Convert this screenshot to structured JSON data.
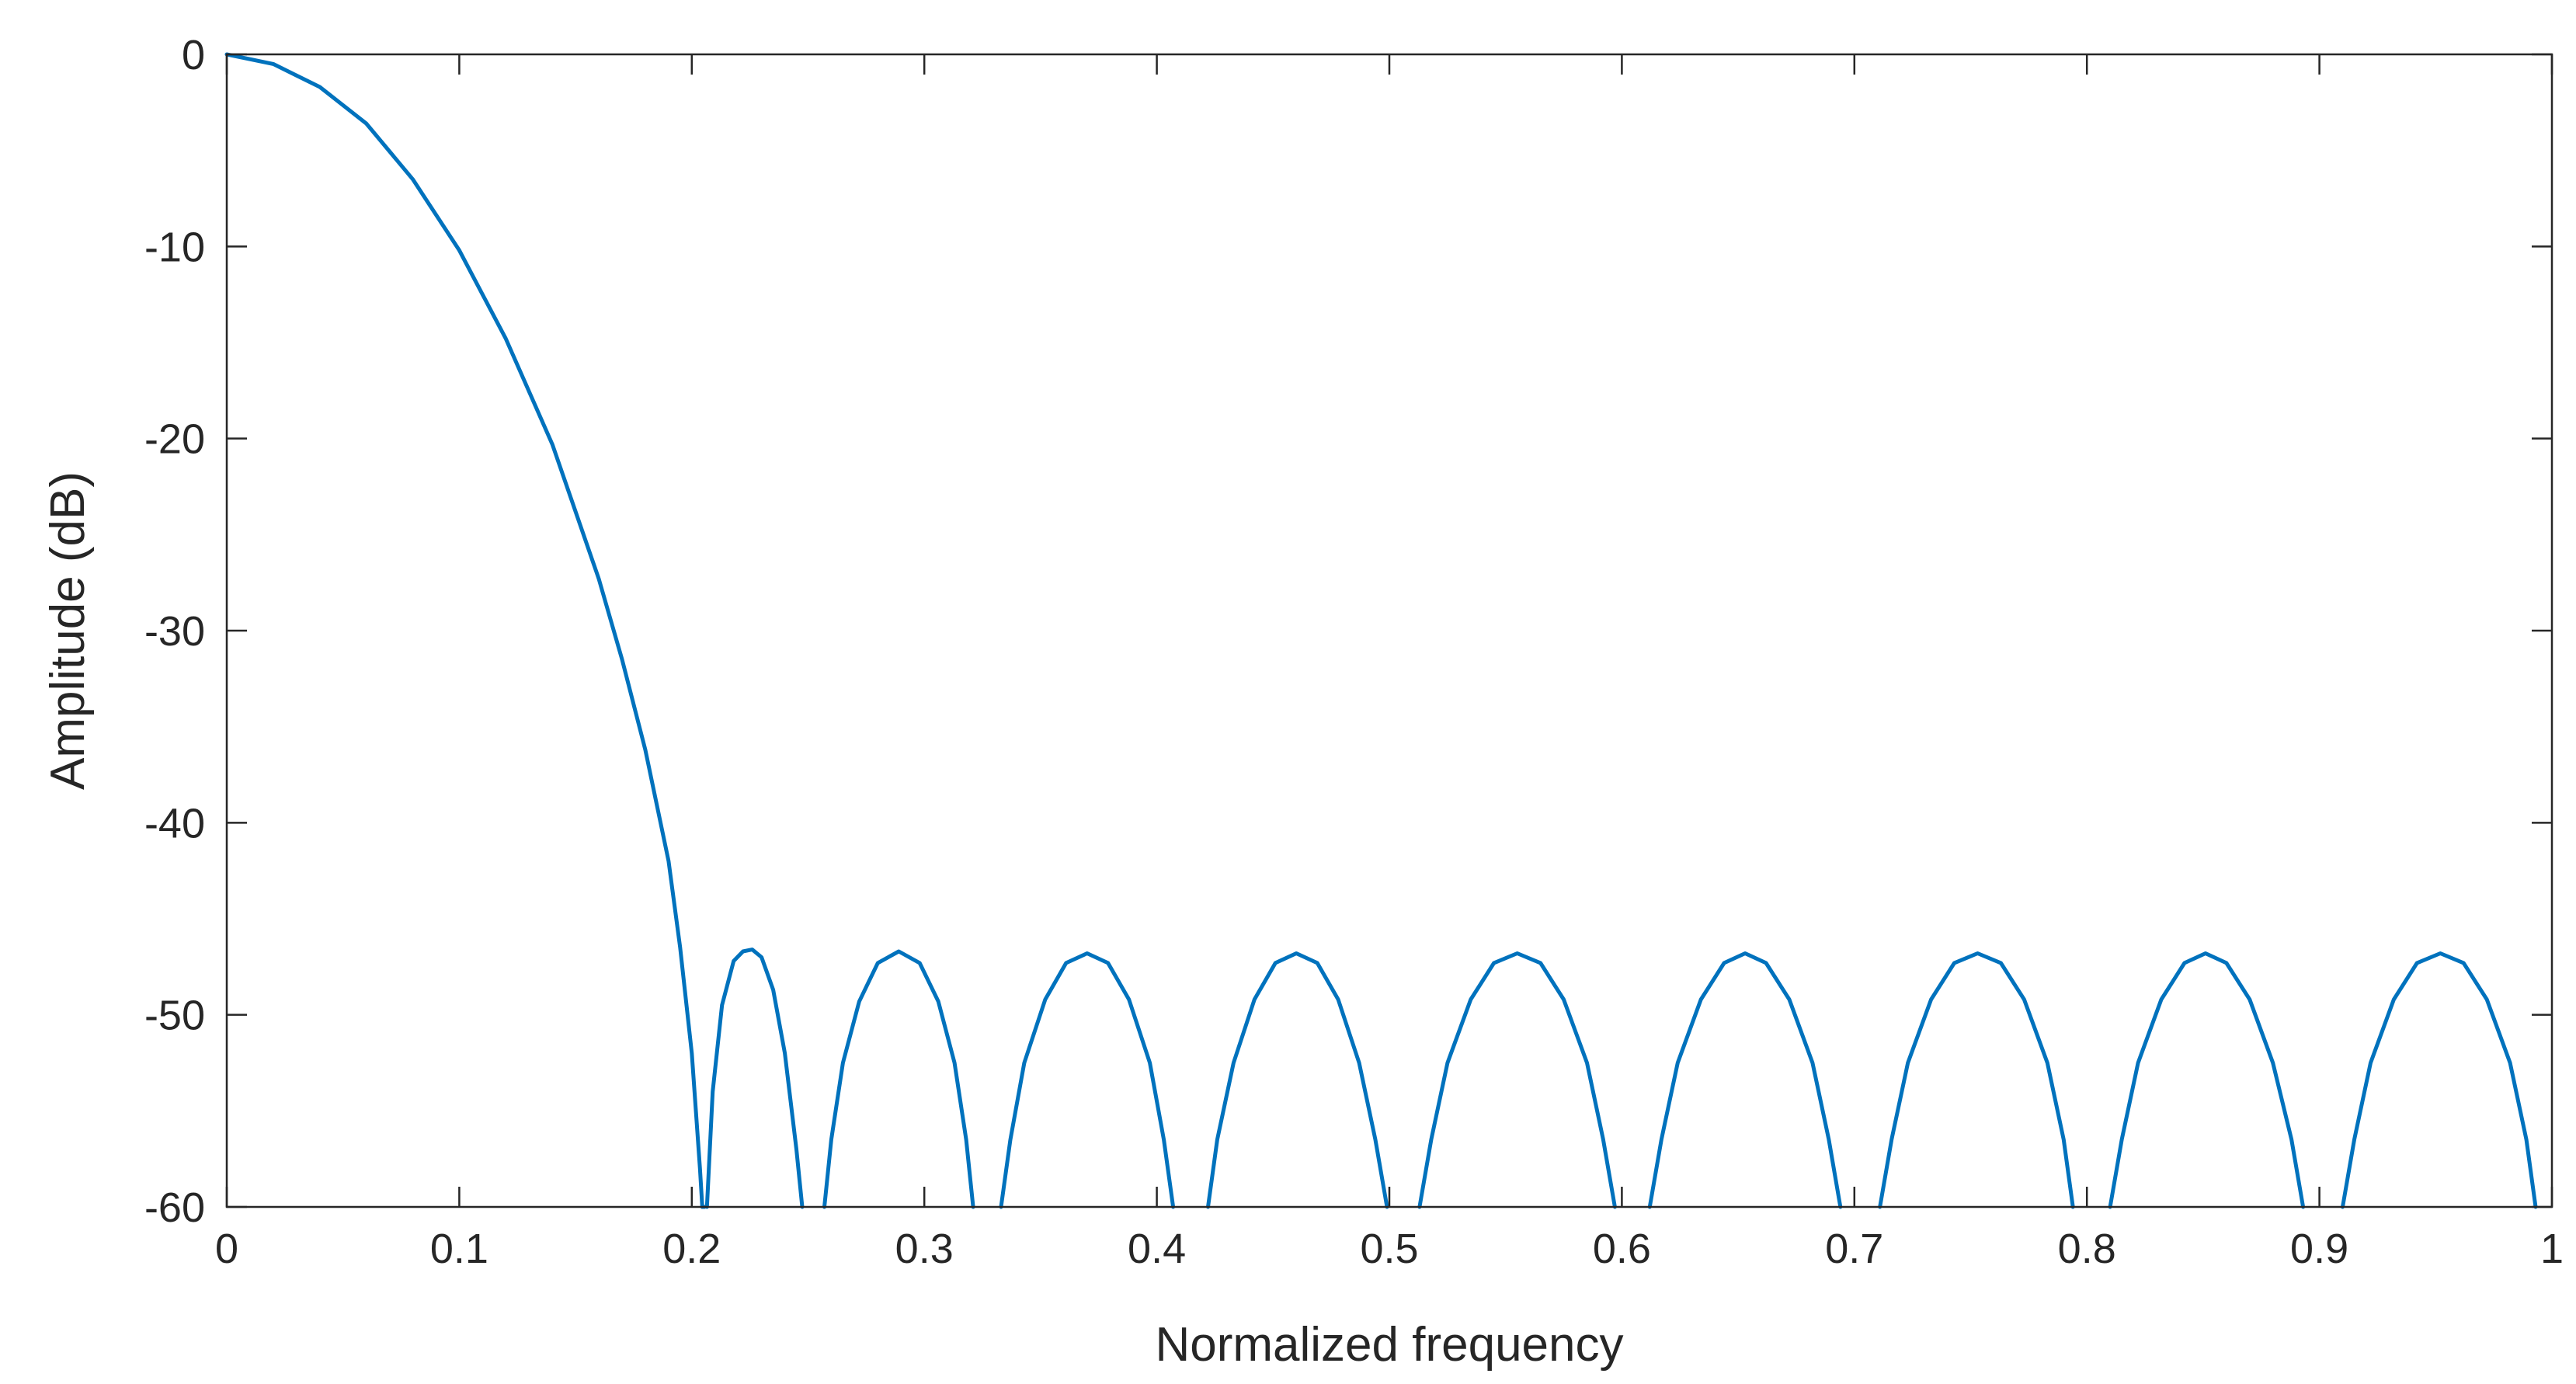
{
  "chart_data": {
    "type": "line",
    "title": "",
    "xlabel": "Normalized frequency",
    "ylabel": "Amplitude (dB)",
    "xlim": [
      0,
      1
    ],
    "ylim": [
      -60,
      0
    ],
    "x_ticks": [
      "0",
      "0.1",
      "0.2",
      "0.3",
      "0.4",
      "0.5",
      "0.6",
      "0.7",
      "0.8",
      "0.9",
      "1"
    ],
    "y_ticks": [
      "0",
      "-10",
      "-20",
      "-30",
      "-40",
      "-50",
      "-60"
    ],
    "grid": false,
    "box": true,
    "line_color": "#0072BD",
    "axis_color": "#262626",
    "series": [
      {
        "x": [
          0,
          0.02,
          0.04,
          0.06,
          0.08,
          0.1,
          0.12,
          0.14,
          0.16,
          0.17,
          0.18,
          0.19,
          0.195,
          0.2,
          0.2035,
          0.2045
        ],
        "values": [
          0,
          -0.5,
          -1.7,
          -3.6,
          -6.5,
          -10.2,
          -14.8,
          -20.3,
          -27.3,
          -31.5,
          -36.2,
          -42.0,
          -46.5,
          -52.0,
          -58.0,
          -60
        ]
      },
      {
        "x": [
          0.2045,
          0.2055
        ],
        "values": [
          -60,
          -60
        ]
      },
      {
        "x": [
          0.2065,
          0.209,
          0.213,
          0.218,
          0.222,
          0.226,
          0.23,
          0.235,
          0.24,
          0.245,
          0.2475
        ],
        "values": [
          -60,
          -54.0,
          -49.5,
          -47.2,
          -46.7,
          -46.6,
          -47.0,
          -48.7,
          -52.0,
          -57.0,
          -60
        ]
      },
      {
        "x": [
          0.257,
          0.26,
          0.265,
          0.272,
          0.28,
          0.289,
          0.298,
          0.306,
          0.313,
          0.318,
          0.321
        ],
        "values": [
          -60,
          -56.5,
          -52.5,
          -49.3,
          -47.3,
          -46.7,
          -47.3,
          -49.3,
          -52.5,
          -56.5,
          -60
        ]
      },
      {
        "x": [
          0.333,
          0.337,
          0.343,
          0.352,
          0.361,
          0.37,
          0.379,
          0.388,
          0.397,
          0.403,
          0.407
        ],
        "values": [
          -60,
          -56.5,
          -52.5,
          -49.2,
          -47.3,
          -46.8,
          -47.3,
          -49.2,
          -52.5,
          -56.5,
          -60
        ]
      },
      {
        "x": [
          0.422,
          0.426,
          0.433,
          0.442,
          0.451,
          0.46,
          0.469,
          0.478,
          0.487,
          0.494,
          0.499
        ],
        "values": [
          -60,
          -56.5,
          -52.5,
          -49.2,
          -47.3,
          -46.8,
          -47.3,
          -49.2,
          -52.5,
          -56.5,
          -60
        ]
      },
      {
        "x": [
          0.513,
          0.518,
          0.525,
          0.535,
          0.545,
          0.555,
          0.565,
          0.575,
          0.585,
          0.592,
          0.597
        ],
        "values": [
          -60,
          -56.5,
          -52.5,
          -49.2,
          -47.3,
          -46.8,
          -47.3,
          -49.2,
          -52.5,
          -56.5,
          -60
        ]
      },
      {
        "x": [
          0.612,
          0.617,
          0.624,
          0.634,
          0.644,
          0.653,
          0.662,
          0.672,
          0.682,
          0.689,
          0.694
        ],
        "values": [
          -60,
          -56.5,
          -52.5,
          -49.2,
          -47.3,
          -46.8,
          -47.3,
          -49.2,
          -52.5,
          -56.5,
          -60
        ]
      },
      {
        "x": [
          0.711,
          0.716,
          0.723,
          0.733,
          0.743,
          0.753,
          0.763,
          0.773,
          0.783,
          0.79,
          0.794
        ],
        "values": [
          -60,
          -56.5,
          -52.5,
          -49.2,
          -47.3,
          -46.8,
          -47.3,
          -49.2,
          -52.5,
          -56.5,
          -60
        ]
      },
      {
        "x": [
          0.81,
          0.815,
          0.822,
          0.832,
          0.842,
          0.851,
          0.86,
          0.87,
          0.88,
          0.888,
          0.893
        ],
        "values": [
          -60,
          -56.5,
          -52.5,
          -49.2,
          -47.3,
          -46.8,
          -47.3,
          -49.2,
          -52.5,
          -56.5,
          -60
        ]
      },
      {
        "x": [
          0.91,
          0.915,
          0.922,
          0.932,
          0.942,
          0.952,
          0.962,
          0.972,
          0.982,
          0.989,
          0.993
        ],
        "values": [
          -60,
          -56.5,
          -52.5,
          -49.2,
          -47.3,
          -46.8,
          -47.3,
          -49.2,
          -52.5,
          -56.5,
          -60
        ]
      }
    ]
  }
}
